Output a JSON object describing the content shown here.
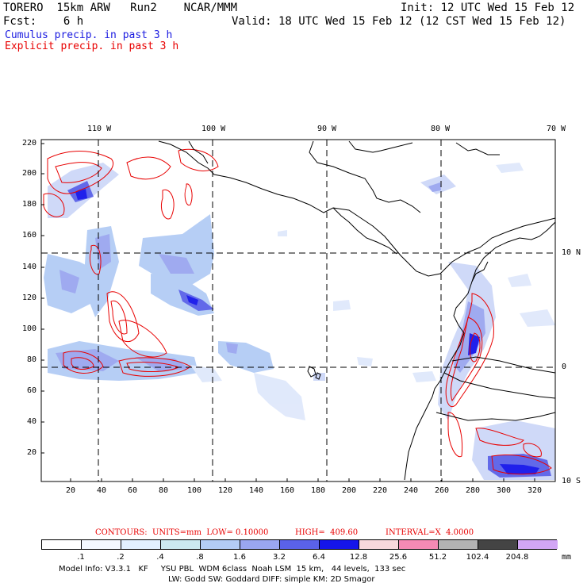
{
  "header": {
    "model_line": "TORERO  15km ARW   Run2    NCAR/MMM",
    "init_line": "Init: 12 UTC Wed 15 Feb 12",
    "fcst_line": "Fcst:    6 h",
    "valid_line": "Valid: 18 UTC Wed 15 Feb 12 (12 CST Wed 15 Feb 12)",
    "legend_cumulus": "Cumulus precip. in past 3 h",
    "legend_explicit": "Explicit precip. in past 3 h"
  },
  "colors": {
    "cumulus": "#1a1ae0",
    "explicit": "#e80000",
    "frame": "#000000"
  },
  "map": {
    "top_labels": [
      "110 W",
      "100 W",
      "90 W",
      "80 W",
      "70 W"
    ],
    "right_labels": [
      "10 N",
      "0",
      "10 S"
    ],
    "y_ticks": [
      "220",
      "200",
      "180",
      "160",
      "140",
      "120",
      "100",
      "80",
      "60",
      "40",
      "20"
    ],
    "x_ticks": [
      "20",
      "40",
      "60",
      "80",
      "100",
      "120",
      "140",
      "160",
      "180",
      "200",
      "220",
      "240",
      "260",
      "280",
      "300",
      "320"
    ]
  },
  "contours": {
    "label": "CONTOURS:  UNITS=mm  LOW= 0.10000",
    "high": "HIGH=  409.60",
    "interval": "INTERVAL=X  4.0000"
  },
  "colorbar": {
    "labels": [
      ".1",
      ".2",
      ".4",
      ".8",
      "1.6",
      "3.2",
      "6.4",
      "12.8",
      "25.6",
      "51.2",
      "102.4",
      "204.8"
    ],
    "unit": "mm",
    "fills": [
      "#ffffff",
      "#f4f8ff",
      "#e2f0ff",
      "#cce8ef",
      "#b3ccf5",
      "#9aa6f0",
      "#5a62e8",
      "#1515ea",
      "#f8d8dc",
      "#f58ab4",
      "#b3b3b3",
      "#444444",
      "#d2a6f5"
    ]
  },
  "footer": {
    "line1": "Model Info: V3.3.1   KF     YSU PBL  WDM 6class  Noah LSM  15 km,   44 levels,  133 sec",
    "line2": "LW: Godd SW: Goddard DIFF: simple KM: 2D Smagor"
  }
}
